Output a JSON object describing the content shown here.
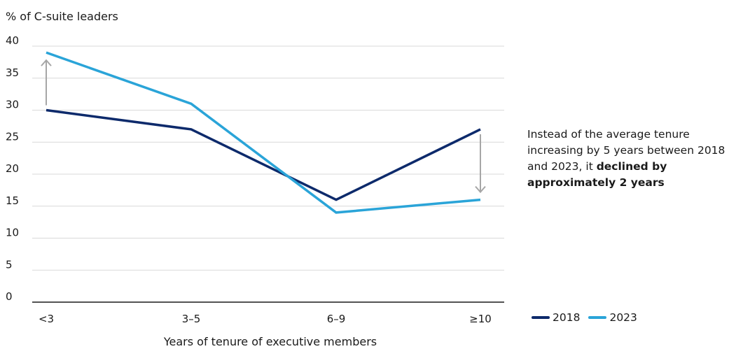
{
  "chart_data": {
    "type": "line",
    "title": "",
    "ylabel": "% of C-suite leaders",
    "xlabel": "Years of tenure of executive members",
    "categories": [
      "<3",
      "3–5",
      "6–9",
      "≥10"
    ],
    "ylim": [
      0,
      40
    ],
    "yticks": [
      0,
      5,
      10,
      15,
      20,
      25,
      30,
      35,
      40
    ],
    "grid": true,
    "legend_position": "bottom-right",
    "series": [
      {
        "name": "2018",
        "values": [
          30,
          27,
          16,
          27
        ],
        "color": "#0d2a6b"
      },
      {
        "name": "2023",
        "values": [
          39,
          31,
          14,
          16
        ],
        "color": "#2aa4d8"
      }
    ],
    "annotation": {
      "text_before": "Instead of the average tenure increasing by 5 years between 2018 and 2023, it ",
      "text_bold": "declined by approximately 2 years"
    },
    "arrows": [
      {
        "category_index": 0,
        "from": 30,
        "to": 39,
        "direction": "up"
      },
      {
        "category_index": 3,
        "from": 27,
        "to": 16,
        "direction": "down"
      }
    ],
    "colors": {
      "grid": "#d9d9d9",
      "axis": "#1a1a1a",
      "arrow": "#a6a6a6"
    }
  }
}
